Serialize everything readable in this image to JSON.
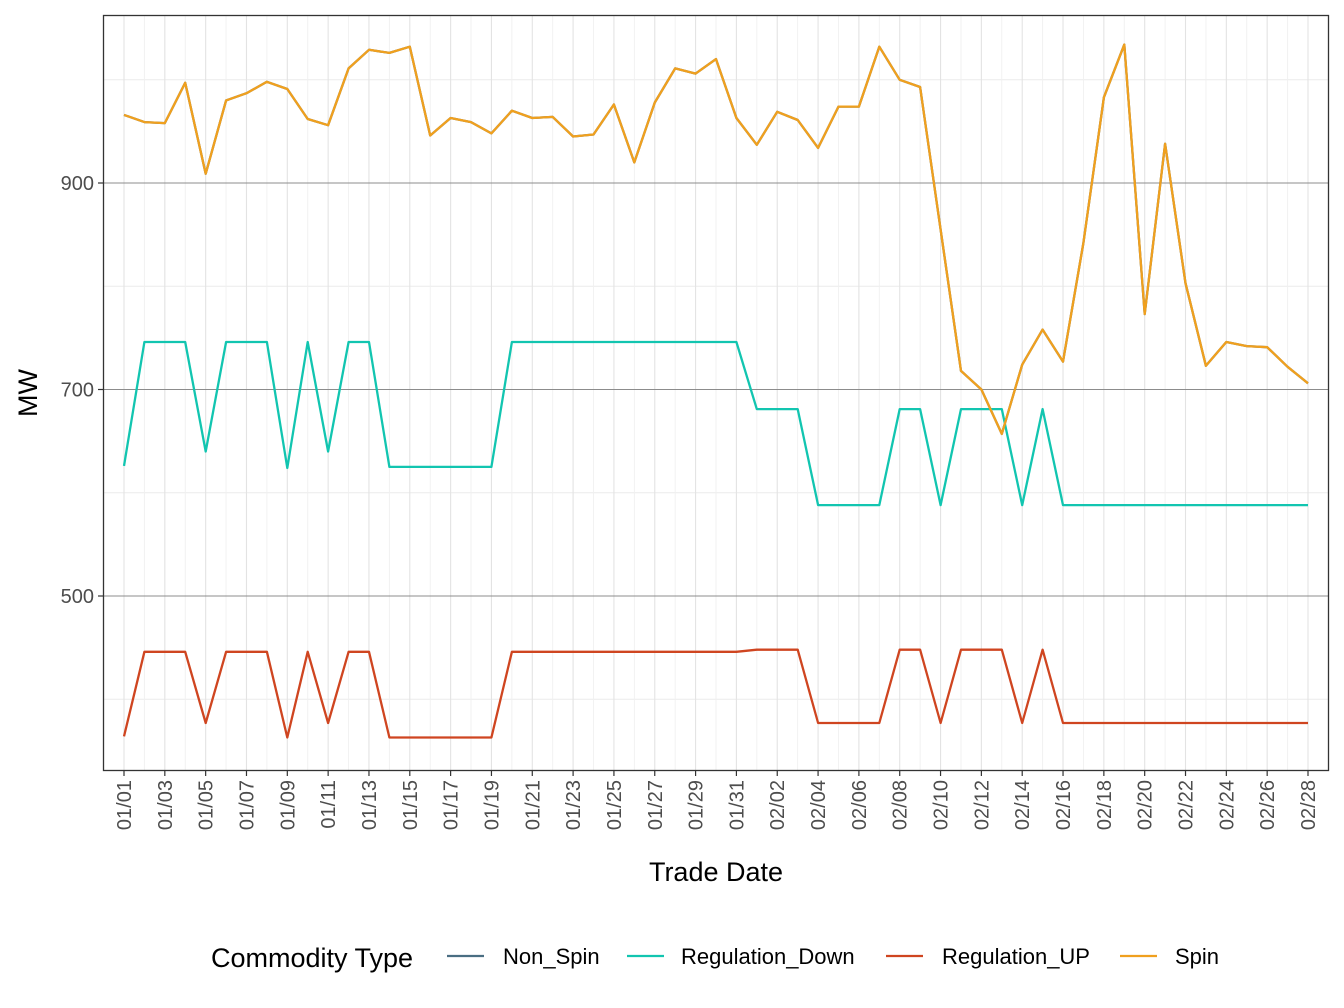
{
  "chart_data": {
    "type": "line",
    "xlabel": "Trade Date",
    "ylabel": "MW",
    "x_tick_labels": [
      "01/01",
      "01/03",
      "01/05",
      "01/07",
      "01/09",
      "01/11",
      "01/13",
      "01/15",
      "01/17",
      "01/19",
      "01/21",
      "01/23",
      "01/25",
      "01/27",
      "01/29",
      "01/31",
      "02/02",
      "02/04",
      "02/06",
      "02/08",
      "02/10",
      "02/12",
      "02/14",
      "02/16",
      "02/18",
      "02/20",
      "02/22",
      "02/24",
      "02/26",
      "02/28"
    ],
    "y_ticks": [
      500,
      700,
      900
    ],
    "ylim": [
      335,
      1068
    ],
    "grid": true,
    "legend": {
      "title": "Commodity Type",
      "position": "bottom",
      "entries": [
        "Non_Spin",
        "Regulation_Down",
        "Regulation_UP",
        "Spin"
      ]
    },
    "x": [
      "01/01",
      "01/02",
      "01/03",
      "01/04",
      "01/05",
      "01/06",
      "01/07",
      "01/08",
      "01/09",
      "01/10",
      "01/11",
      "01/12",
      "01/13",
      "01/14",
      "01/15",
      "01/16",
      "01/17",
      "01/18",
      "01/19",
      "01/20",
      "01/21",
      "01/22",
      "01/23",
      "01/24",
      "01/25",
      "01/26",
      "01/27",
      "01/28",
      "01/29",
      "01/30",
      "01/31",
      "02/01",
      "02/02",
      "02/03",
      "02/04",
      "02/05",
      "02/06",
      "02/07",
      "02/08",
      "02/09",
      "02/10",
      "02/11",
      "02/12",
      "02/13",
      "02/14",
      "02/15",
      "02/16",
      "02/17",
      "02/18",
      "02/19",
      "02/20",
      "02/21",
      "02/22",
      "02/23",
      "02/24",
      "02/25",
      "02/26",
      "02/27",
      "02/28"
    ],
    "series": [
      {
        "name": "Non_Spin",
        "color": "#4a6e82",
        "values": [
          966,
          959,
          958,
          997,
          909,
          980,
          987,
          998,
          991,
          962,
          956,
          1011,
          1029,
          1026,
          1032,
          946,
          963,
          959,
          948,
          970,
          963,
          964,
          945,
          947,
          976,
          920,
          978,
          1011,
          1006,
          1020,
          963,
          937,
          969,
          961,
          934,
          974,
          974,
          1032,
          1000,
          993,
          855,
          718,
          700,
          657,
          724,
          758,
          727,
          842,
          983,
          1034,
          773,
          938,
          803,
          723,
          746,
          742,
          741,
          722,
          706
        ]
      },
      {
        "name": "Regulation_Down",
        "color": "#12c5b0",
        "values": [
          626,
          746,
          746,
          746,
          640,
          746,
          746,
          746,
          624,
          746,
          640,
          746,
          746,
          625,
          625,
          625,
          625,
          625,
          625,
          746,
          746,
          746,
          746,
          746,
          746,
          746,
          746,
          746,
          746,
          746,
          746,
          681,
          681,
          681,
          588,
          588,
          588,
          588,
          681,
          681,
          588,
          681,
          681,
          681,
          588,
          681,
          588,
          588,
          588,
          588,
          588,
          588,
          588,
          588,
          588,
          588,
          588,
          588,
          588
        ]
      },
      {
        "name": "Regulation_UP",
        "color": "#cf4520",
        "values": [
          364,
          446,
          446,
          446,
          377,
          446,
          446,
          446,
          363,
          446,
          377,
          446,
          446,
          363,
          363,
          363,
          363,
          363,
          363,
          446,
          446,
          446,
          446,
          446,
          446,
          446,
          446,
          446,
          446,
          446,
          446,
          448,
          448,
          448,
          377,
          377,
          377,
          377,
          448,
          448,
          377,
          448,
          448,
          448,
          377,
          448,
          377,
          377,
          377,
          377,
          377,
          377,
          377,
          377,
          377,
          377,
          377,
          377,
          377
        ]
      },
      {
        "name": "Spin",
        "color": "#f0a01e",
        "values": [
          966,
          959,
          958,
          997,
          909,
          980,
          987,
          998,
          991,
          962,
          956,
          1011,
          1029,
          1026,
          1032,
          946,
          963,
          959,
          948,
          970,
          963,
          964,
          945,
          947,
          976,
          920,
          978,
          1011,
          1006,
          1020,
          963,
          937,
          969,
          961,
          934,
          974,
          974,
          1032,
          1000,
          993,
          855,
          718,
          700,
          657,
          724,
          758,
          727,
          842,
          983,
          1034,
          773,
          938,
          803,
          723,
          746,
          742,
          741,
          722,
          706
        ]
      }
    ]
  }
}
